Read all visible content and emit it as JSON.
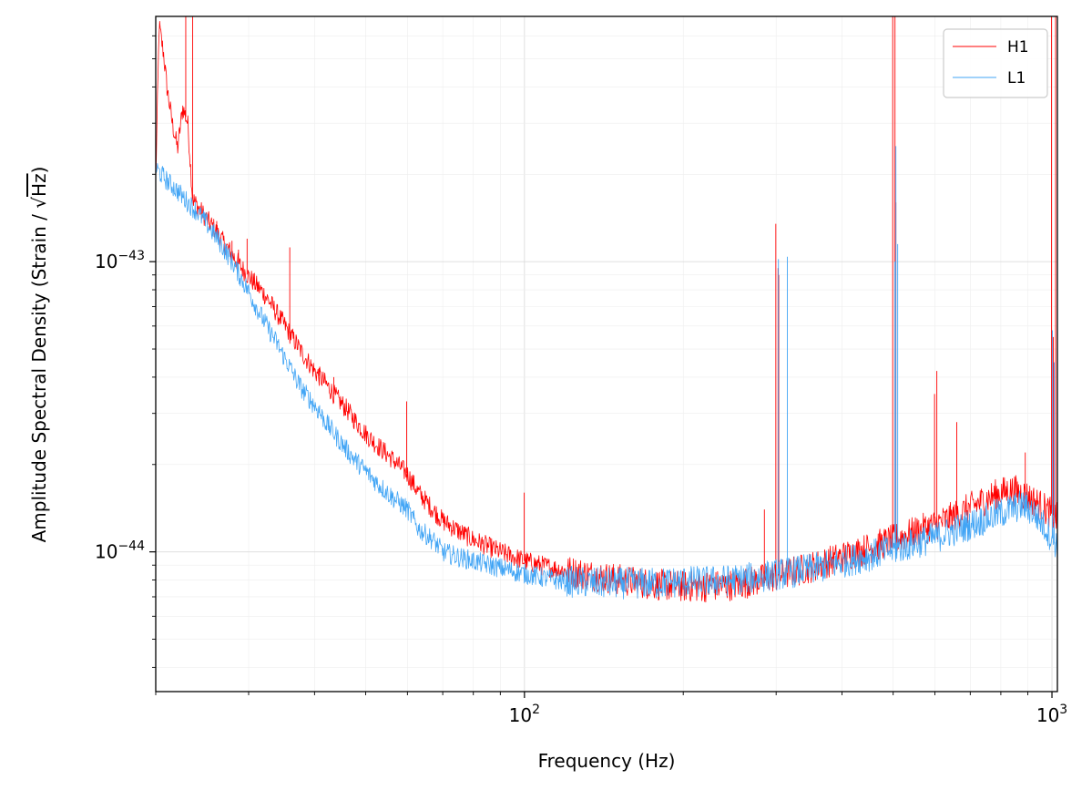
{
  "chart_data": {
    "type": "line",
    "title": "",
    "xlabel": "Frequency (Hz)",
    "ylabel_prefix": "Amplitude Spectral Density (Strain / ",
    "ylabel_sqrt": "√",
    "ylabel_unit": "Hz",
    "ylabel_suffix": ")",
    "x_scale": "log",
    "y_scale": "log",
    "xlim": [
      20,
      1024
    ],
    "ylim": [
      3.3e-45,
      7e-43
    ],
    "grid": true,
    "legend_position": "top-right",
    "x_ticks": [
      {
        "value": 100,
        "base": "10",
        "exp": "2"
      },
      {
        "value": 1000,
        "base": "10",
        "exp": "3"
      }
    ],
    "y_ticks": [
      {
        "value": 1e-44,
        "base": "10",
        "exp": "−44"
      },
      {
        "value": 1e-43,
        "base": "10",
        "exp": "−43"
      }
    ],
    "series": [
      {
        "name": "H1",
        "color": "#ff0000",
        "points": [
          [
            20,
            1.9e-43
          ],
          [
            20.3,
            6.5e-43
          ],
          [
            20.7,
            5.2e-43
          ],
          [
            21,
            4e-43
          ],
          [
            21.5,
            3e-43
          ],
          [
            22,
            2.45e-43
          ],
          [
            22.5,
            3.4e-43
          ],
          [
            23,
            3e-43
          ],
          [
            23.5,
            1.65e-43
          ],
          [
            24,
            1.55e-43
          ],
          [
            25,
            1.4e-43
          ],
          [
            26,
            1.28e-43
          ],
          [
            27,
            1.15e-43
          ],
          [
            28,
            1.05e-43
          ],
          [
            29,
            9.6e-44
          ],
          [
            30,
            8.9e-44
          ],
          [
            31,
            8.3e-44
          ],
          [
            32,
            7.8e-44
          ],
          [
            33,
            7.2e-44
          ],
          [
            34,
            6.6e-44
          ],
          [
            35,
            6.1e-44
          ],
          [
            36,
            5.6e-44
          ],
          [
            37,
            5.2e-44
          ],
          [
            38,
            4.8e-44
          ],
          [
            39,
            4.5e-44
          ],
          [
            40,
            4.2e-44
          ],
          [
            42,
            3.8e-44
          ],
          [
            44,
            3.4e-44
          ],
          [
            46,
            3.1e-44
          ],
          [
            48,
            2.8e-44
          ],
          [
            50,
            2.55e-44
          ],
          [
            53,
            2.3e-44
          ],
          [
            56,
            2.1e-44
          ],
          [
            60,
            1.85e-44
          ],
          [
            63,
            1.6e-44
          ],
          [
            67,
            1.4e-44
          ],
          [
            70,
            1.28e-44
          ],
          [
            75,
            1.18e-44
          ],
          [
            80,
            1.1e-44
          ],
          [
            90,
            1e-44
          ],
          [
            100,
            9.3e-45
          ],
          [
            110,
            8.9e-45
          ],
          [
            120,
            8.6e-45
          ],
          [
            140,
            8.2e-45
          ],
          [
            160,
            7.9e-45
          ],
          [
            180,
            7.7e-45
          ],
          [
            200,
            7.6e-45
          ],
          [
            220,
            7.6e-45
          ],
          [
            250,
            7.7e-45
          ],
          [
            280,
            8e-45
          ],
          [
            320,
            8.5e-45
          ],
          [
            360,
            9e-45
          ],
          [
            400,
            9.6e-45
          ],
          [
            450,
            1.03e-44
          ],
          [
            500,
            1.1e-44
          ],
          [
            550,
            1.17e-44
          ],
          [
            600,
            1.24e-44
          ],
          [
            650,
            1.32e-44
          ],
          [
            700,
            1.42e-44
          ],
          [
            750,
            1.52e-44
          ],
          [
            800,
            1.6e-44
          ],
          [
            850,
            1.63e-44
          ],
          [
            900,
            1.55e-44
          ],
          [
            950,
            1.45e-44
          ],
          [
            1000,
            1.35e-44
          ],
          [
            1024,
            1.3e-44
          ]
        ],
        "lines": [
          [
            22.8,
            7e-43
          ],
          [
            23.5,
            7e-43
          ],
          [
            26.1,
            1.38e-43
          ],
          [
            27.9,
            1.18e-43
          ],
          [
            28.7,
            1.1e-43
          ],
          [
            29.8,
            1.2e-43
          ],
          [
            31.1,
            8.5e-44
          ],
          [
            35.9,
            1.12e-43
          ],
          [
            40.8,
            4.3e-44
          ],
          [
            43.5,
            4e-44
          ],
          [
            59.8,
            3.3e-44
          ],
          [
            99.9,
            1.6e-44
          ],
          [
            285,
            1.4e-44
          ],
          [
            299.6,
            1.35e-43
          ],
          [
            302.5,
            9.5e-44
          ],
          [
            303.5,
            9e-44
          ],
          [
            499,
            7e-43
          ],
          [
            504,
            7e-43
          ],
          [
            506,
            1.6e-43
          ],
          [
            599,
            3.5e-44
          ],
          [
            605,
            4.2e-44
          ],
          [
            660,
            2.8e-44
          ],
          [
            890,
            2.2e-44
          ],
          [
            998,
            7e-43
          ],
          [
            1006,
            5.5e-44
          ],
          [
            1016,
            7e-43
          ]
        ]
      },
      {
        "name": "L1",
        "color": "#42a5f5",
        "points": [
          [
            20,
            2.1e-43
          ],
          [
            21,
            1.9e-43
          ],
          [
            22,
            1.75e-43
          ],
          [
            23,
            1.6e-43
          ],
          [
            24,
            1.48e-43
          ],
          [
            25,
            1.35e-43
          ],
          [
            26,
            1.22e-43
          ],
          [
            27,
            1.1e-43
          ],
          [
            28,
            9.9e-44
          ],
          [
            29,
            8.8e-44
          ],
          [
            30,
            7.9e-44
          ],
          [
            31,
            7e-44
          ],
          [
            32,
            6.3e-44
          ],
          [
            33,
            5.7e-44
          ],
          [
            34,
            5.2e-44
          ],
          [
            35,
            4.7e-44
          ],
          [
            36,
            4.3e-44
          ],
          [
            37,
            3.9e-44
          ],
          [
            38,
            3.6e-44
          ],
          [
            40,
            3.2e-44
          ],
          [
            42,
            2.8e-44
          ],
          [
            44,
            2.5e-44
          ],
          [
            46,
            2.25e-44
          ],
          [
            48,
            2.05e-44
          ],
          [
            50,
            1.9e-44
          ],
          [
            53,
            1.7e-44
          ],
          [
            56,
            1.55e-44
          ],
          [
            60,
            1.4e-44
          ],
          [
            63,
            1.2e-44
          ],
          [
            67,
            1.1e-44
          ],
          [
            70,
            1e-44
          ],
          [
            75,
            9.6e-45
          ],
          [
            80,
            9.3e-45
          ],
          [
            90,
            8.8e-45
          ],
          [
            100,
            8.4e-45
          ],
          [
            110,
            8.1e-45
          ],
          [
            120,
            7.9e-45
          ],
          [
            140,
            7.8e-45
          ],
          [
            160,
            7.8e-45
          ],
          [
            180,
            7.8e-45
          ],
          [
            200,
            7.9e-45
          ],
          [
            220,
            7.9e-45
          ],
          [
            250,
            8e-45
          ],
          [
            280,
            8.2e-45
          ],
          [
            320,
            8.5e-45
          ],
          [
            360,
            8.8e-45
          ],
          [
            400,
            9.2e-45
          ],
          [
            450,
            9.7e-45
          ],
          [
            500,
            1.02e-44
          ],
          [
            550,
            1.07e-44
          ],
          [
            600,
            1.12e-44
          ],
          [
            650,
            1.18e-44
          ],
          [
            700,
            1.24e-44
          ],
          [
            750,
            1.3e-44
          ],
          [
            800,
            1.36e-44
          ],
          [
            850,
            1.42e-44
          ],
          [
            880,
            1.45e-44
          ],
          [
            920,
            1.38e-44
          ],
          [
            960,
            1.25e-44
          ],
          [
            1000,
            1.12e-44
          ],
          [
            1024,
            1.05e-44
          ]
        ],
        "lines": [
          [
            20.1,
            2.1e-43
          ],
          [
            33.6,
            5.6e-44
          ],
          [
            40.9,
            3.2e-44
          ],
          [
            303,
            1.02e-43
          ],
          [
            315,
            1.04e-43
          ],
          [
            504,
            1e-43
          ],
          [
            506,
            2.5e-43
          ],
          [
            510,
            1.15e-43
          ],
          [
            1002,
            5.8e-44
          ],
          [
            1010,
            4.5e-44
          ]
        ]
      }
    ]
  }
}
